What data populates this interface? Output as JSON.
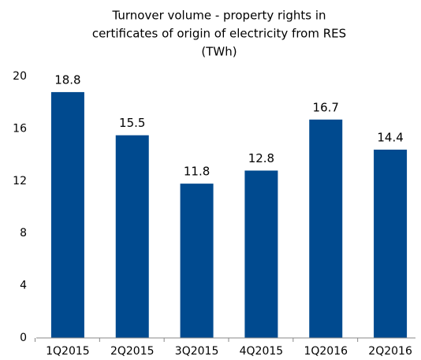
{
  "chart_data": {
    "type": "bar",
    "title": [
      "Turnover volume - property rights in",
      "certificates of origin of electricity from RES",
      "(TWh)"
    ],
    "categories": [
      "1Q2015",
      "2Q2015",
      "3Q2015",
      "4Q2015",
      "1Q2016",
      "2Q2016"
    ],
    "values": [
      18.8,
      15.5,
      11.8,
      12.8,
      16.7,
      14.4
    ],
    "color": "#004a8f",
    "ylim": [
      0,
      20
    ],
    "yticks": [
      0,
      4,
      8,
      12,
      16,
      20
    ],
    "grid": false,
    "data_labels": true
  }
}
